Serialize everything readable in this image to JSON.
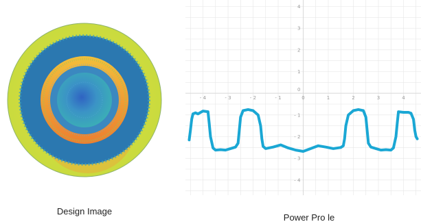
{
  "captions": {
    "design": "Design Image",
    "profile": "Power Pro  le"
  },
  "colors": {
    "curve": "#1aa7d4",
    "grid": "#e6e6e6",
    "axis": "#d8d8d8",
    "outer_ring": "#cfdc3c",
    "dark_ring": "#2b78b0",
    "orange_band": "#f0963a",
    "center_blue": "#3a86c4"
  },
  "design_image": {
    "icon": "concentric-rings-lens-map"
  },
  "chart_data": {
    "type": "line",
    "title": "",
    "xlabel": "",
    "ylabel": "",
    "xlim": [
      -4.7,
      4.7
    ],
    "ylim": [
      -4.7,
      4.3
    ],
    "x_ticks": [
      -4,
      -3,
      -2,
      -1,
      0,
      1,
      2,
      3,
      4
    ],
    "y_ticks": [
      4,
      3,
      2,
      1,
      0,
      -1,
      -2,
      -3,
      -4
    ],
    "x_tick_labels": [
      "- 4",
      "- 3",
      "- 2",
      "- 1",
      "0",
      "1",
      "2",
      "3",
      "4"
    ],
    "y_tick_labels": [
      "4",
      "3",
      "2",
      "1",
      "0",
      "- 1",
      "- 2",
      "- 3",
      "- 4"
    ],
    "grid": true,
    "series": [
      {
        "x": [
          -4.55,
          -4.5,
          -4.45,
          -4.4,
          -4.3,
          -4.2,
          -4.0,
          -3.8,
          -3.75,
          -3.7,
          -3.6,
          -3.5,
          -3.3,
          -3.1,
          -2.9,
          -2.7,
          -2.6,
          -2.55,
          -2.5,
          -2.4,
          -2.2,
          -2.0,
          -1.8,
          -1.7,
          -1.65,
          -1.6,
          -1.5,
          -1.2,
          -0.9,
          -0.6,
          -0.3,
          0.0,
          0.3,
          0.6,
          0.9,
          1.2,
          1.5,
          1.6,
          1.65,
          1.7,
          1.8,
          2.0,
          2.2,
          2.4,
          2.5,
          2.55,
          2.6,
          2.7,
          2.9,
          3.1,
          3.3,
          3.5,
          3.6,
          3.7,
          3.75,
          3.8,
          4.0,
          4.2,
          4.3,
          4.4,
          4.45,
          4.5,
          4.55
        ],
        "y": [
          -2.15,
          -1.7,
          -1.2,
          -0.95,
          -0.9,
          -0.95,
          -0.82,
          -0.85,
          -1.4,
          -2.0,
          -2.52,
          -2.62,
          -2.6,
          -2.62,
          -2.55,
          -2.48,
          -2.3,
          -1.7,
          -1.1,
          -0.8,
          -0.75,
          -0.8,
          -1.0,
          -1.5,
          -2.1,
          -2.45,
          -2.55,
          -2.48,
          -2.38,
          -2.52,
          -2.62,
          -2.68,
          -2.55,
          -2.42,
          -2.48,
          -2.55,
          -2.5,
          -2.42,
          -2.1,
          -1.5,
          -1.0,
          -0.8,
          -0.75,
          -0.8,
          -1.1,
          -1.7,
          -2.3,
          -2.48,
          -2.55,
          -2.62,
          -2.6,
          -2.62,
          -2.52,
          -2.0,
          -1.4,
          -0.85,
          -0.88,
          -0.88,
          -0.92,
          -1.2,
          -1.7,
          -2.0,
          -2.1
        ]
      }
    ]
  }
}
